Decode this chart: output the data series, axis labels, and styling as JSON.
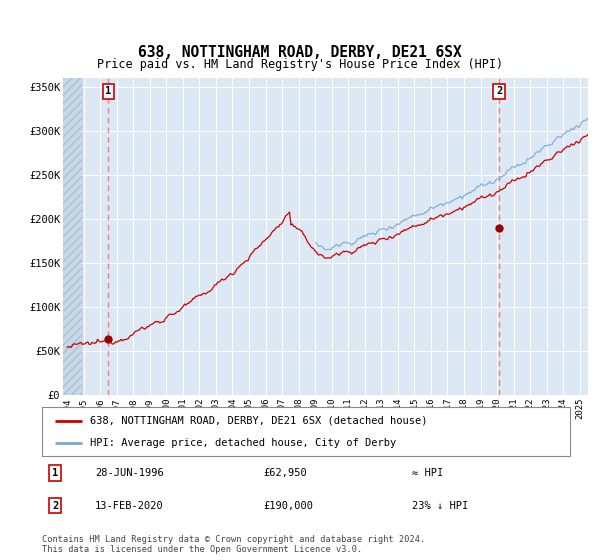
{
  "title": "638, NOTTINGHAM ROAD, DERBY, DE21 6SX",
  "subtitle": "Price paid vs. HM Land Registry's House Price Index (HPI)",
  "xlim": [
    1993.75,
    2025.5
  ],
  "ylim": [
    0,
    360000
  ],
  "yticks": [
    0,
    50000,
    100000,
    150000,
    200000,
    250000,
    300000,
    350000
  ],
  "ytick_labels": [
    "£0",
    "£50K",
    "£100K",
    "£150K",
    "£200K",
    "£250K",
    "£300K",
    "£350K"
  ],
  "bg_color": "#dce9f5",
  "grid_color": "#ffffff",
  "sale1_year": 1996.49,
  "sale1_price": 62950,
  "sale2_year": 2020.12,
  "sale2_price": 190000,
  "legend_line1": "638, NOTTINGHAM ROAD, DERBY, DE21 6SX (detached house)",
  "legend_line2": "HPI: Average price, detached house, City of Derby",
  "note1_date": "28-JUN-1996",
  "note1_price": "£62,950",
  "note1_rel": "≈ HPI",
  "note2_date": "13-FEB-2020",
  "note2_price": "£190,000",
  "note2_rel": "23% ↓ HPI",
  "footer": "Contains HM Land Registry data © Crown copyright and database right 2024.\nThis data is licensed under the Open Government Licence v3.0.",
  "red_line_color": "#cc0000",
  "blue_line_color": "#7aa8d0",
  "marker_color": "#990000",
  "dashed_color": "#f08080",
  "hatch_area_end": 1994.92
}
